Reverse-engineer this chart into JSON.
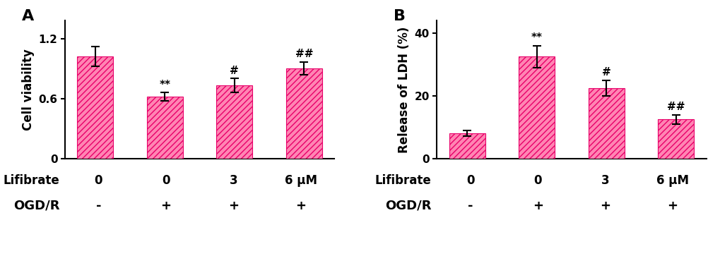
{
  "panel_A": {
    "label": "A",
    "values": [
      1.02,
      0.62,
      0.73,
      0.9
    ],
    "errors": [
      0.1,
      0.04,
      0.07,
      0.065
    ],
    "ylabel": "Cell viability",
    "ylim": [
      0,
      1.38
    ],
    "yticks": [
      0,
      0.6,
      1.2
    ],
    "annotations": [
      "",
      "**",
      "#",
      "##"
    ],
    "lifibrate_labels": [
      "0",
      "0",
      "3",
      "6 μM"
    ],
    "ogdr_labels": [
      "-",
      "+",
      "+",
      "+"
    ]
  },
  "panel_B": {
    "label": "B",
    "values": [
      8.0,
      32.5,
      22.5,
      12.5
    ],
    "errors": [
      0.9,
      3.5,
      2.5,
      1.5
    ],
    "ylabel": "Release of LDH (%)",
    "ylim": [
      0,
      44
    ],
    "yticks": [
      0,
      20,
      40
    ],
    "annotations": [
      "",
      "**",
      "#",
      "##"
    ],
    "lifibrate_labels": [
      "0",
      "0",
      "3",
      "6 μM"
    ],
    "ogdr_labels": [
      "-",
      "+",
      "+",
      "+"
    ]
  },
  "bar_color": "#FF85B3",
  "bar_edgecolor": "#E8006A",
  "hatch": "////",
  "bar_width": 0.52,
  "fig_width": 10.2,
  "fig_height": 3.63,
  "tick_fontsize": 11,
  "annot_fontsize": 11,
  "ylabel_fontsize": 12,
  "panel_label_fontsize": 16,
  "xlabel_row1": "Lifibrate",
  "xlabel_row2": "OGD/R",
  "xlabel_fontsize": 12,
  "xlabel_fontsize_ogdr": 13
}
